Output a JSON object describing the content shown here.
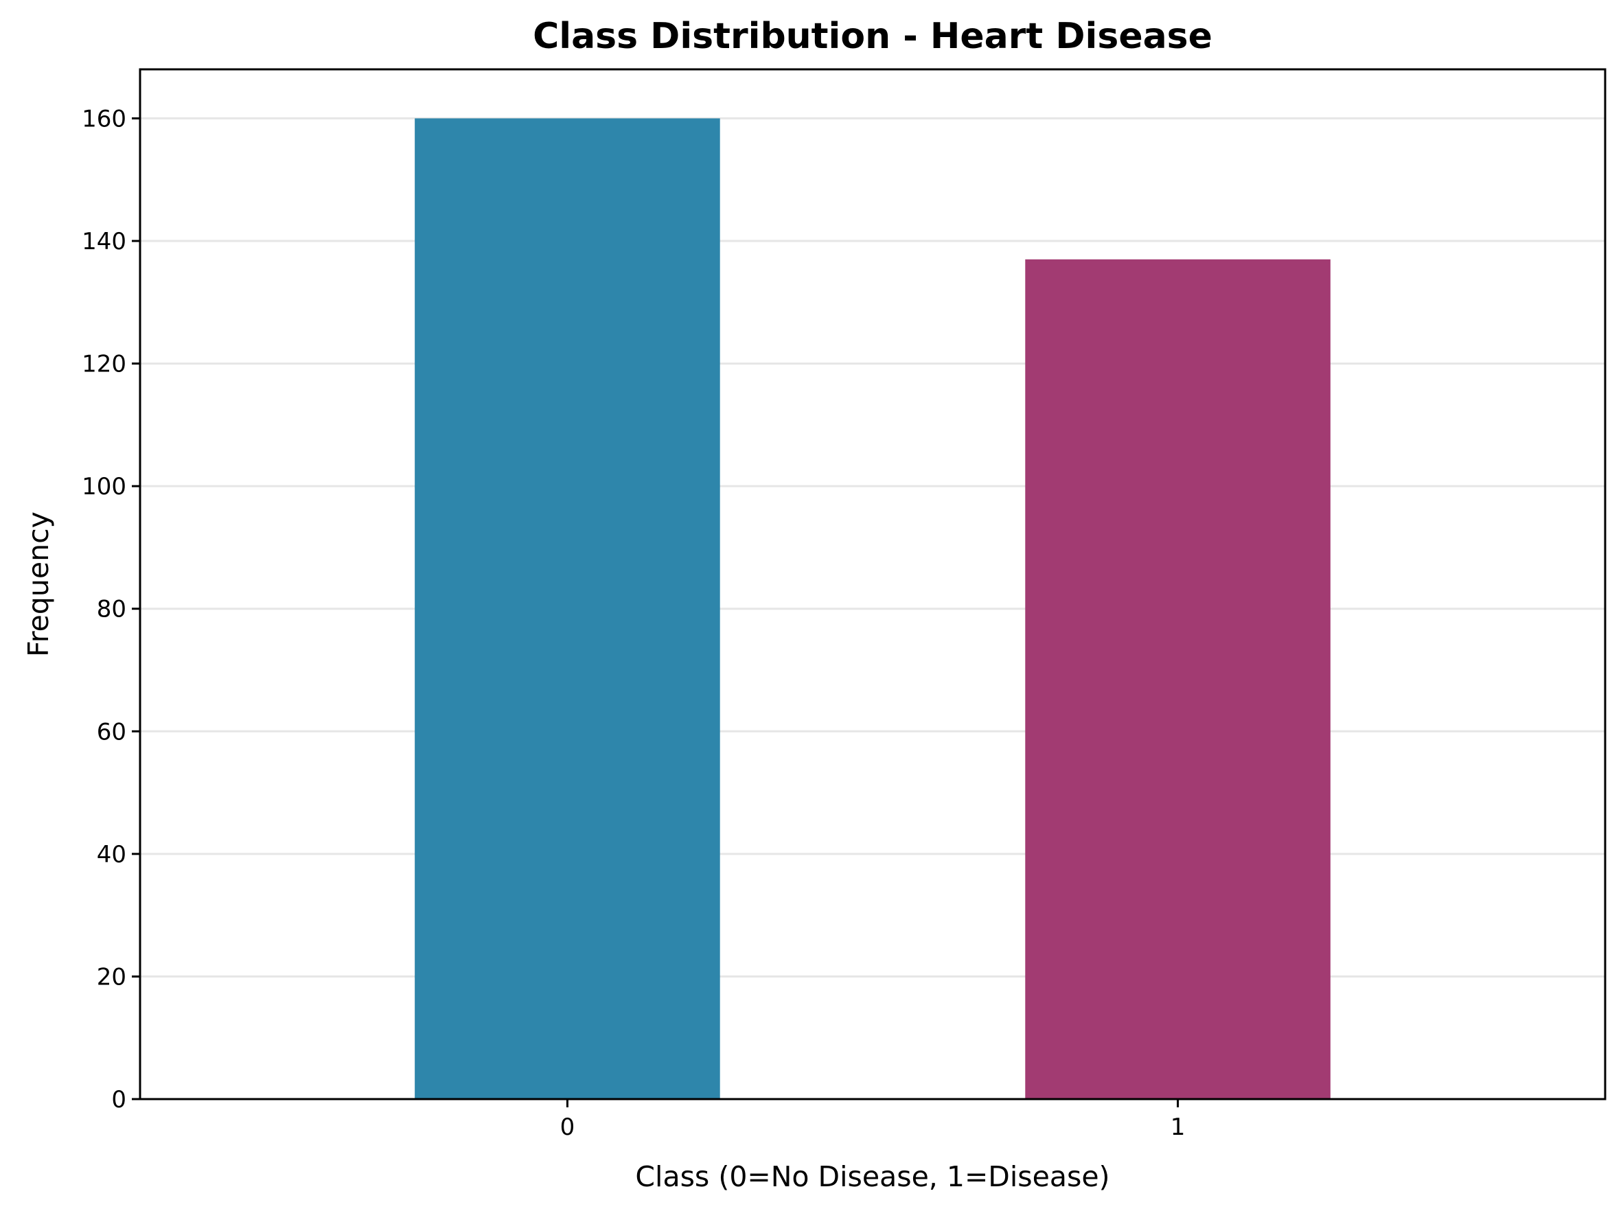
{
  "chart_data": {
    "type": "bar",
    "title": "Class Distribution - Heart Disease",
    "xlabel": "Class (0=No Disease, 1=Disease)",
    "ylabel": "Frequency",
    "categories": [
      "0",
      "1"
    ],
    "values": [
      160,
      137
    ],
    "colors": [
      "#2e86ab",
      "#a23b72"
    ],
    "ylim": [
      0,
      168
    ],
    "yticks": [
      0,
      20,
      40,
      60,
      80,
      100,
      120,
      140,
      160
    ],
    "grid": "y"
  }
}
